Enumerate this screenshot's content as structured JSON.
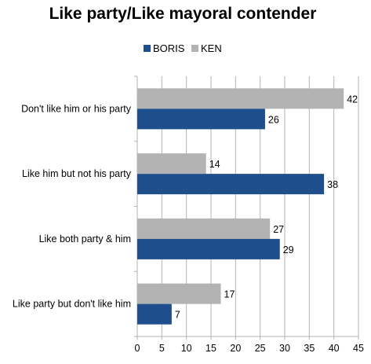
{
  "chart_data": {
    "type": "bar",
    "orientation": "horizontal",
    "title": "Like party/Like mayoral contender",
    "categories": [
      "Don't like him or his party",
      "Like him but not his party",
      "Like both party & him",
      "Like party but don't like him"
    ],
    "series": [
      {
        "name": "BORIS",
        "color": "#1f4e8c",
        "values": [
          26,
          38,
          29,
          7
        ]
      },
      {
        "name": "KEN",
        "color": "#b3b3b3",
        "values": [
          42,
          14,
          27,
          17
        ]
      }
    ],
    "xlim": [
      0,
      45
    ],
    "xticks": [
      "0",
      "5",
      "10",
      "15",
      "20",
      "25",
      "30",
      "35",
      "40",
      "45"
    ],
    "grid": true,
    "legend_position": "top"
  }
}
